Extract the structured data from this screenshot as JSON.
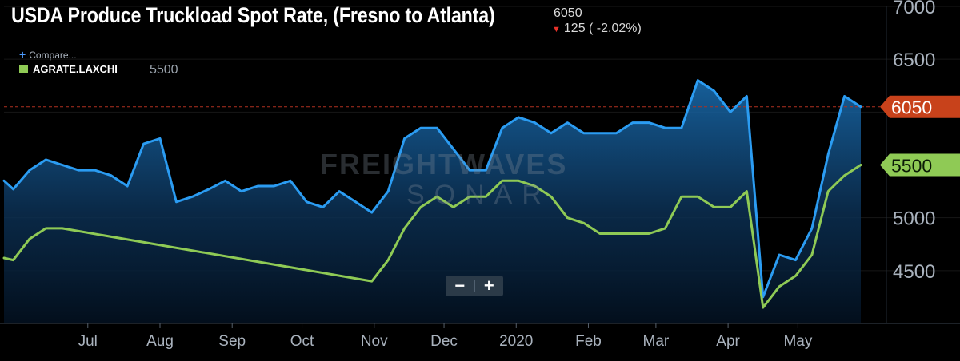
{
  "header": {
    "title": "USDA Produce Truckload Spot Rate, (Fresno to Atlanta)",
    "last_value": "6050",
    "change": "125 ( -2.02%)"
  },
  "legend": {
    "compare_label": "Compare...",
    "series_name": "AGRATE.LAXCHI",
    "series_value": "5500"
  },
  "zoom": {
    "minus": "−",
    "plus": "+"
  },
  "watermark": {
    "brand": "FREIGHTWAVES",
    "sub": "SONAR"
  },
  "colors": {
    "background": "#000000",
    "primary_line": "#2b9cf2",
    "secondary_line": "#8fca55",
    "last_value_badge": "#c8421b",
    "reference_line": "#b03020",
    "axis_text": "#a9b2bd"
  },
  "chart_data": {
    "type": "line",
    "xlim": [
      "2019-05-26",
      "2020-06-08"
    ],
    "ylim": [
      4000,
      7000
    ],
    "y_ticks": [
      4500,
      5000,
      5500,
      6000,
      6500,
      7000
    ],
    "y_tick_labels": [
      "4500",
      "5000",
      "5500",
      "",
      "6500",
      "7000"
    ],
    "x_ticks": [
      {
        "date": "2019-07-01",
        "label": "Jul"
      },
      {
        "date": "2019-08-01",
        "label": "Aug"
      },
      {
        "date": "2019-09-01",
        "label": "Sep"
      },
      {
        "date": "2019-10-01",
        "label": "Oct"
      },
      {
        "date": "2019-11-01",
        "label": "Nov"
      },
      {
        "date": "2019-12-01",
        "label": "Dec"
      },
      {
        "date": "2020-01-01",
        "label": "2020"
      },
      {
        "date": "2020-02-01",
        "label": "Feb"
      },
      {
        "date": "2020-03-01",
        "label": "Mar"
      },
      {
        "date": "2020-04-01",
        "label": "Apr"
      },
      {
        "date": "2020-05-01",
        "label": "May"
      }
    ],
    "reference_line": 6050,
    "series": [
      {
        "name": "USDA Produce Truckload Spot Rate, (Fresno to Atlanta)",
        "color": "#2b9cf2",
        "area": true,
        "last_label": "6050",
        "points": [
          [
            "2019-05-26",
            5350
          ],
          [
            "2019-05-30",
            5270
          ],
          [
            "2019-06-06",
            5450
          ],
          [
            "2019-06-13",
            5550
          ],
          [
            "2019-06-20",
            5500
          ],
          [
            "2019-06-27",
            5450
          ],
          [
            "2019-07-04",
            5450
          ],
          [
            "2019-07-11",
            5400
          ],
          [
            "2019-07-18",
            5300
          ],
          [
            "2019-07-25",
            5700
          ],
          [
            "2019-08-01",
            5750
          ],
          [
            "2019-08-08",
            5150
          ],
          [
            "2019-08-15",
            5200
          ],
          [
            "2019-08-22",
            5270
          ],
          [
            "2019-08-29",
            5350
          ],
          [
            "2019-09-05",
            5250
          ],
          [
            "2019-09-12",
            5300
          ],
          [
            "2019-09-19",
            5300
          ],
          [
            "2019-09-26",
            5350
          ],
          [
            "2019-10-03",
            5150
          ],
          [
            "2019-10-10",
            5100
          ],
          [
            "2019-10-17",
            5250
          ],
          [
            "2019-10-24",
            5150
          ],
          [
            "2019-10-31",
            5050
          ],
          [
            "2019-11-07",
            5250
          ],
          [
            "2019-11-14",
            5750
          ],
          [
            "2019-11-21",
            5850
          ],
          [
            "2019-11-28",
            5850
          ],
          [
            "2019-12-05",
            5650
          ],
          [
            "2019-12-12",
            5450
          ],
          [
            "2019-12-19",
            5450
          ],
          [
            "2019-12-26",
            5850
          ],
          [
            "2020-01-02",
            5950
          ],
          [
            "2020-01-09",
            5900
          ],
          [
            "2020-01-16",
            5800
          ],
          [
            "2020-01-23",
            5900
          ],
          [
            "2020-01-30",
            5800
          ],
          [
            "2020-02-06",
            5800
          ],
          [
            "2020-02-13",
            5800
          ],
          [
            "2020-02-20",
            5900
          ],
          [
            "2020-02-27",
            5900
          ],
          [
            "2020-03-05",
            5850
          ],
          [
            "2020-03-12",
            5850
          ],
          [
            "2020-03-19",
            6300
          ],
          [
            "2020-03-26",
            6200
          ],
          [
            "2020-04-02",
            6000
          ],
          [
            "2020-04-09",
            6150
          ],
          [
            "2020-04-16",
            4250
          ],
          [
            "2020-04-23",
            4650
          ],
          [
            "2020-04-30",
            4600
          ],
          [
            "2020-05-07",
            4900
          ],
          [
            "2020-05-14",
            5600
          ],
          [
            "2020-05-21",
            6150
          ],
          [
            "2020-05-28",
            6050
          ]
        ]
      },
      {
        "name": "AGRATE.LAXCHI",
        "color": "#8fca55",
        "area": false,
        "last_label": "5500",
        "points": [
          [
            "2019-05-26",
            4620
          ],
          [
            "2019-05-30",
            4600
          ],
          [
            "2019-06-06",
            4800
          ],
          [
            "2019-06-13",
            4900
          ],
          [
            "2019-06-20",
            4900
          ],
          [
            "2019-10-31",
            4400
          ],
          [
            "2019-11-07",
            4600
          ],
          [
            "2019-11-14",
            4900
          ],
          [
            "2019-11-21",
            5100
          ],
          [
            "2019-11-28",
            5200
          ],
          [
            "2019-12-05",
            5100
          ],
          [
            "2019-12-12",
            5200
          ],
          [
            "2019-12-19",
            5200
          ],
          [
            "2019-12-26",
            5350
          ],
          [
            "2020-01-02",
            5350
          ],
          [
            "2020-01-09",
            5300
          ],
          [
            "2020-01-16",
            5200
          ],
          [
            "2020-01-23",
            5000
          ],
          [
            "2020-01-30",
            4950
          ],
          [
            "2020-02-06",
            4850
          ],
          [
            "2020-02-13",
            4850
          ],
          [
            "2020-02-20",
            4850
          ],
          [
            "2020-02-27",
            4850
          ],
          [
            "2020-03-05",
            4900
          ],
          [
            "2020-03-12",
            5200
          ],
          [
            "2020-03-19",
            5200
          ],
          [
            "2020-03-26",
            5100
          ],
          [
            "2020-04-02",
            5100
          ],
          [
            "2020-04-09",
            5250
          ],
          [
            "2020-04-16",
            4150
          ],
          [
            "2020-04-23",
            4350
          ],
          [
            "2020-04-30",
            4450
          ],
          [
            "2020-05-07",
            4650
          ],
          [
            "2020-05-14",
            5250
          ],
          [
            "2020-05-21",
            5400
          ],
          [
            "2020-05-28",
            5500
          ]
        ]
      }
    ]
  }
}
